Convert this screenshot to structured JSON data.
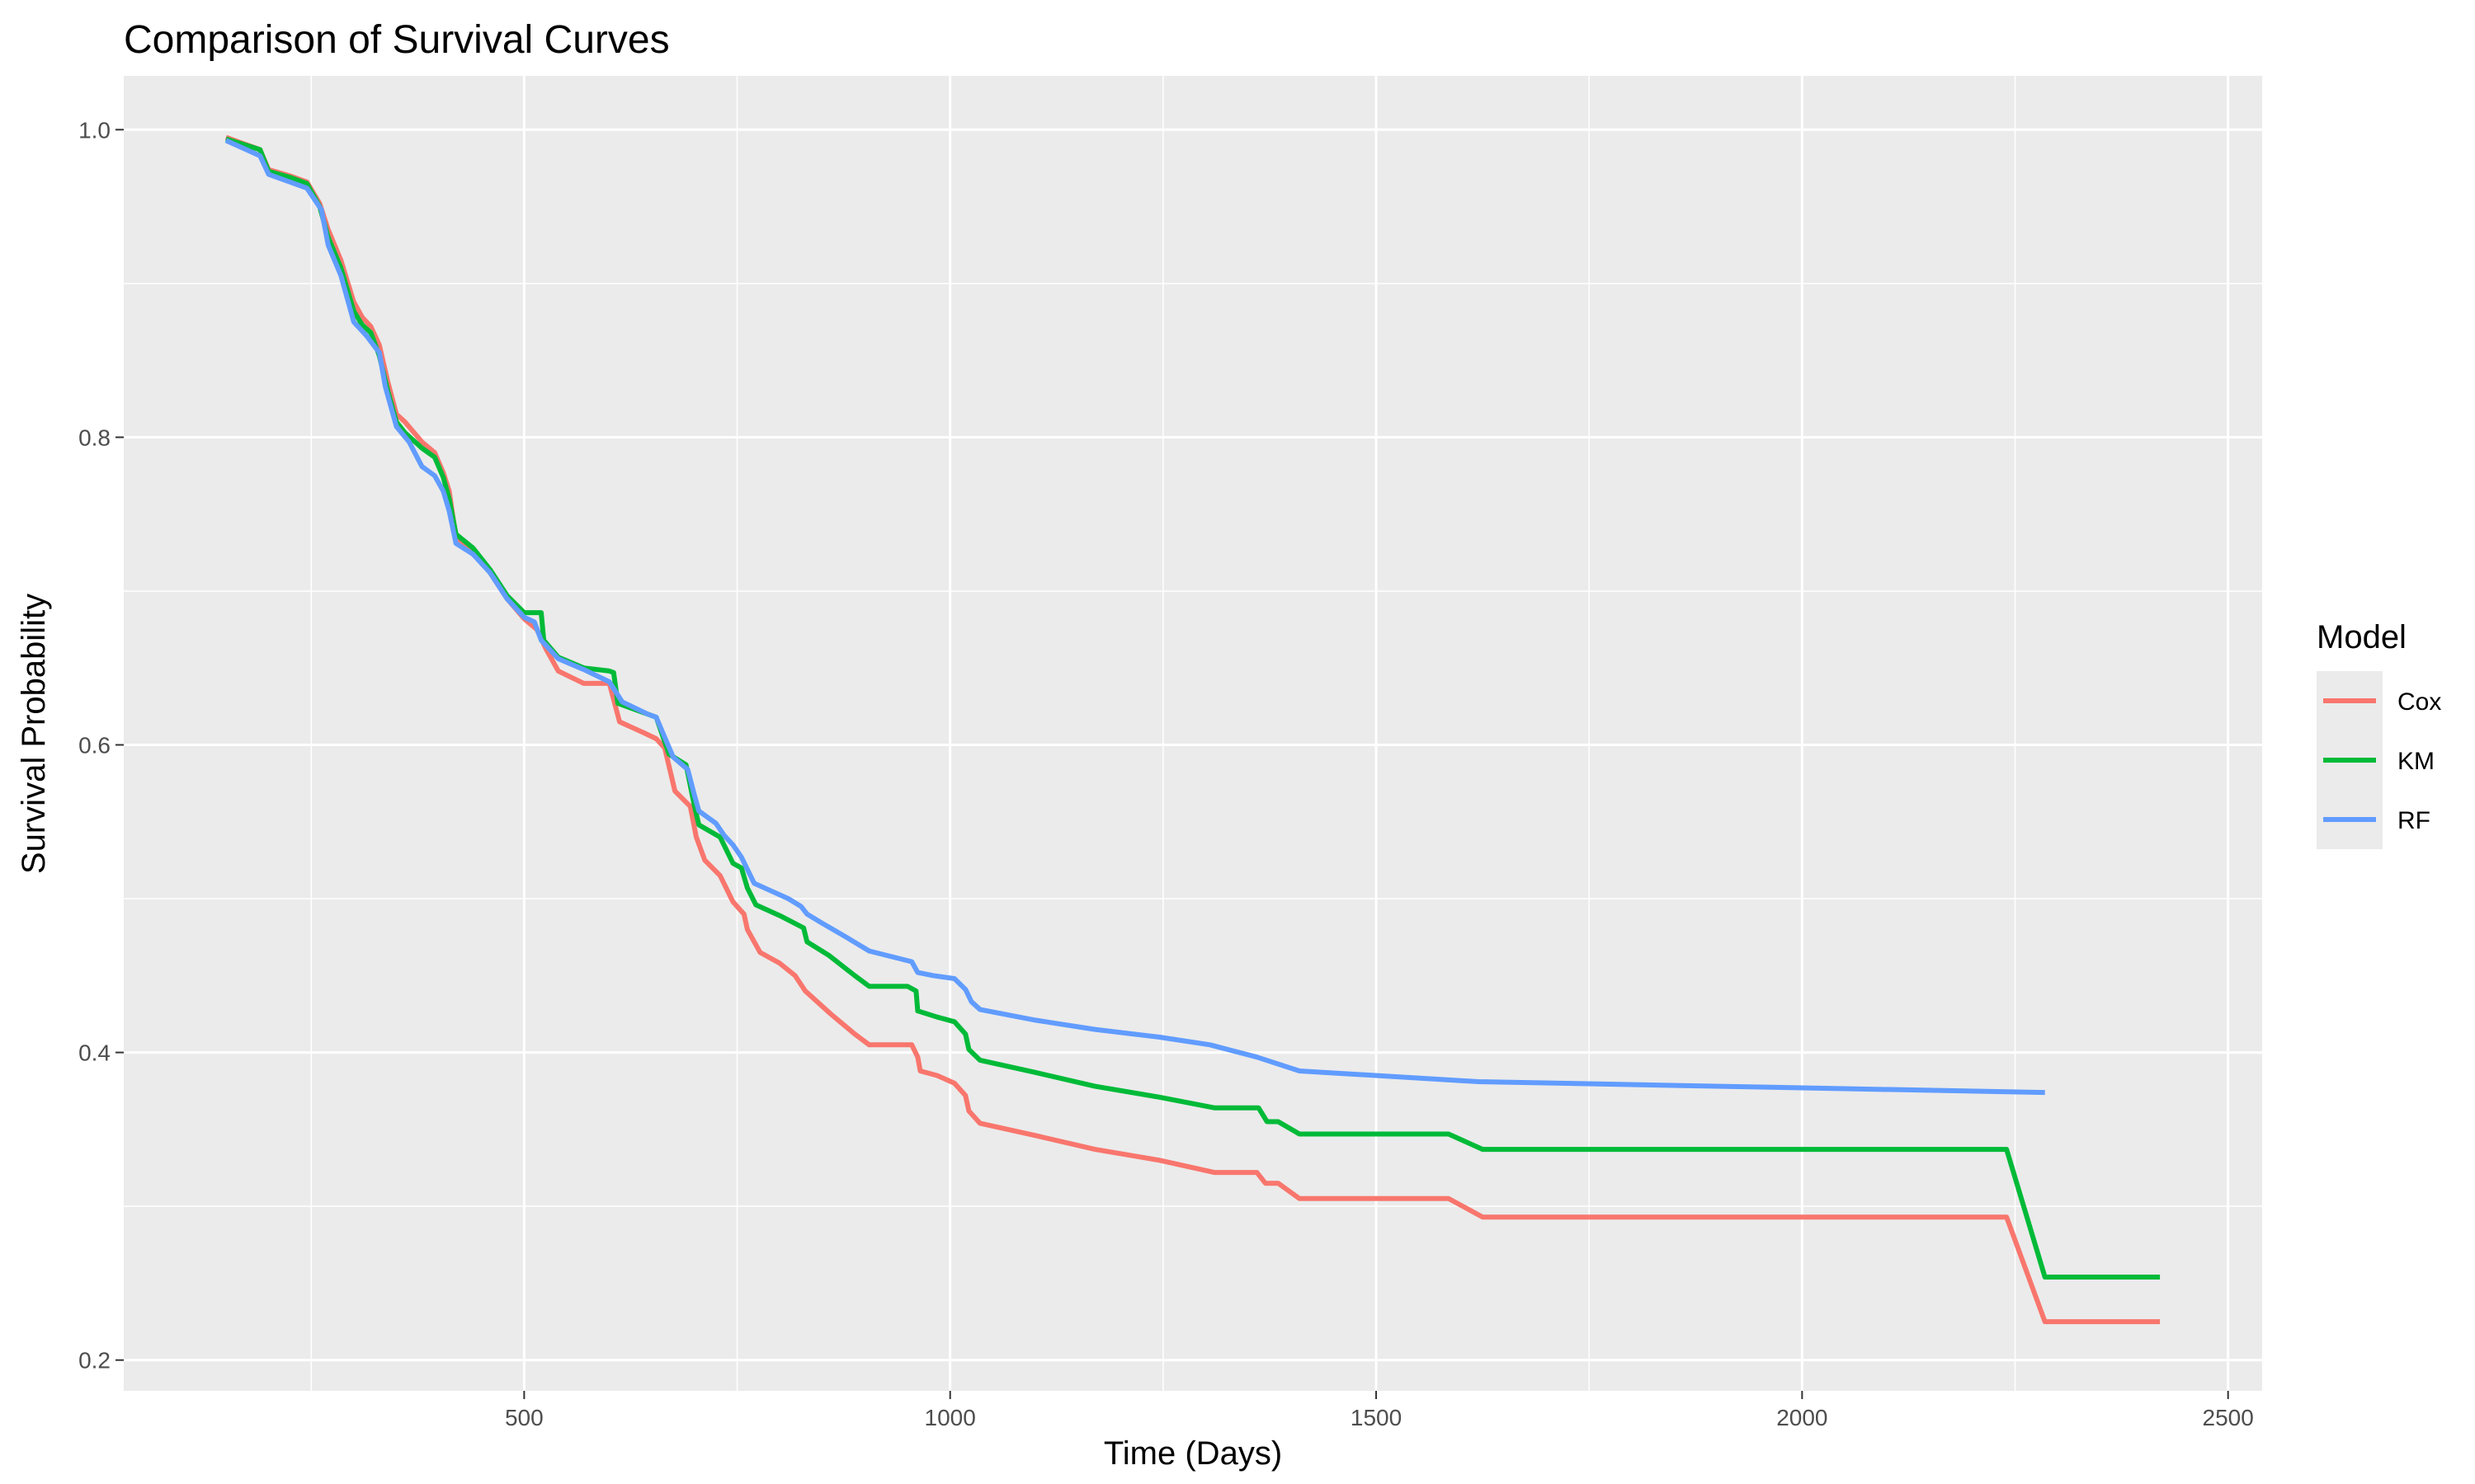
{
  "chart_data": {
    "type": "line",
    "title": "Comparison of Survival Curves",
    "xlabel": "Time (Days)",
    "ylabel": "Survival Probability",
    "xlim": [
      30,
      2540
    ],
    "ylim": [
      0.18,
      1.035
    ],
    "x_ticks": [
      500,
      1000,
      1500,
      2000,
      2500
    ],
    "x_minor_ticks": [
      250,
      750,
      1250,
      1750,
      2250
    ],
    "y_ticks": [
      0.2,
      0.4,
      0.6,
      0.8,
      1.0
    ],
    "y_tick_labels": [
      "0.2",
      "0.4",
      "0.6",
      "0.8",
      "1.0"
    ],
    "y_minor_ticks": [
      0.3,
      0.5,
      0.7,
      0.9
    ],
    "grid": true,
    "legend": {
      "title": "Model",
      "position": "right"
    },
    "background": "#ebebeb",
    "series": [
      {
        "name": "Cox",
        "color": "#f8766d",
        "points": [
          [
            150,
            0.995
          ],
          [
            190,
            0.987
          ],
          [
            200,
            0.974
          ],
          [
            225,
            0.97
          ],
          [
            245,
            0.966
          ],
          [
            260,
            0.952
          ],
          [
            270,
            0.935
          ],
          [
            285,
            0.915
          ],
          [
            300,
            0.888
          ],
          [
            310,
            0.878
          ],
          [
            320,
            0.872
          ],
          [
            330,
            0.86
          ],
          [
            340,
            0.836
          ],
          [
            350,
            0.815
          ],
          [
            360,
            0.81
          ],
          [
            380,
            0.797
          ],
          [
            395,
            0.79
          ],
          [
            405,
            0.777
          ],
          [
            412,
            0.765
          ],
          [
            420,
            0.735
          ],
          [
            440,
            0.727
          ],
          [
            460,
            0.712
          ],
          [
            480,
            0.695
          ],
          [
            500,
            0.682
          ],
          [
            515,
            0.675
          ],
          [
            525,
            0.663
          ],
          [
            540,
            0.648
          ],
          [
            570,
            0.64
          ],
          [
            600,
            0.64
          ],
          [
            612,
            0.615
          ],
          [
            640,
            0.608
          ],
          [
            655,
            0.604
          ],
          [
            665,
            0.598
          ],
          [
            677,
            0.57
          ],
          [
            695,
            0.56
          ],
          [
            702,
            0.54
          ],
          [
            712,
            0.525
          ],
          [
            730,
            0.515
          ],
          [
            745,
            0.498
          ],
          [
            758,
            0.49
          ],
          [
            762,
            0.48
          ],
          [
            777,
            0.465
          ],
          [
            800,
            0.458
          ],
          [
            818,
            0.45
          ],
          [
            830,
            0.44
          ],
          [
            860,
            0.425
          ],
          [
            888,
            0.412
          ],
          [
            905,
            0.405
          ],
          [
            955,
            0.405
          ],
          [
            962,
            0.397
          ],
          [
            965,
            0.388
          ],
          [
            985,
            0.385
          ],
          [
            1005,
            0.38
          ],
          [
            1018,
            0.372
          ],
          [
            1022,
            0.362
          ],
          [
            1035,
            0.354
          ],
          [
            1100,
            0.346
          ],
          [
            1170,
            0.337
          ],
          [
            1245,
            0.33
          ],
          [
            1310,
            0.322
          ],
          [
            1360,
            0.322
          ],
          [
            1370,
            0.315
          ],
          [
            1385,
            0.315
          ],
          [
            1410,
            0.305
          ],
          [
            1585,
            0.305
          ],
          [
            1625,
            0.293
          ],
          [
            2240,
            0.293
          ],
          [
            2285,
            0.225
          ],
          [
            2420,
            0.225
          ]
        ]
      },
      {
        "name": "KM",
        "color": "#00ba38",
        "points": [
          [
            150,
            0.994
          ],
          [
            190,
            0.987
          ],
          [
            200,
            0.973
          ],
          [
            225,
            0.969
          ],
          [
            245,
            0.965
          ],
          [
            260,
            0.95
          ],
          [
            270,
            0.93
          ],
          [
            285,
            0.91
          ],
          [
            300,
            0.882
          ],
          [
            310,
            0.873
          ],
          [
            320,
            0.868
          ],
          [
            330,
            0.853
          ],
          [
            340,
            0.83
          ],
          [
            350,
            0.81
          ],
          [
            360,
            0.803
          ],
          [
            380,
            0.793
          ],
          [
            395,
            0.787
          ],
          [
            405,
            0.774
          ],
          [
            412,
            0.76
          ],
          [
            420,
            0.737
          ],
          [
            440,
            0.728
          ],
          [
            460,
            0.714
          ],
          [
            480,
            0.697
          ],
          [
            500,
            0.686
          ],
          [
            520,
            0.686
          ],
          [
            523,
            0.668
          ],
          [
            540,
            0.657
          ],
          [
            570,
            0.65
          ],
          [
            600,
            0.648
          ],
          [
            605,
            0.647
          ],
          [
            610,
            0.627
          ],
          [
            640,
            0.621
          ],
          [
            655,
            0.618
          ],
          [
            670,
            0.594
          ],
          [
            690,
            0.587
          ],
          [
            700,
            0.56
          ],
          [
            705,
            0.548
          ],
          [
            730,
            0.54
          ],
          [
            745,
            0.523
          ],
          [
            755,
            0.52
          ],
          [
            762,
            0.507
          ],
          [
            772,
            0.496
          ],
          [
            800,
            0.489
          ],
          [
            828,
            0.481
          ],
          [
            832,
            0.472
          ],
          [
            858,
            0.463
          ],
          [
            888,
            0.45
          ],
          [
            905,
            0.443
          ],
          [
            950,
            0.443
          ],
          [
            960,
            0.44
          ],
          [
            962,
            0.427
          ],
          [
            985,
            0.423
          ],
          [
            1005,
            0.42
          ],
          [
            1018,
            0.412
          ],
          [
            1022,
            0.402
          ],
          [
            1035,
            0.395
          ],
          [
            1100,
            0.387
          ],
          [
            1170,
            0.378
          ],
          [
            1245,
            0.371
          ],
          [
            1310,
            0.364
          ],
          [
            1362,
            0.364
          ],
          [
            1372,
            0.355
          ],
          [
            1385,
            0.355
          ],
          [
            1410,
            0.347
          ],
          [
            1585,
            0.347
          ],
          [
            1625,
            0.337
          ],
          [
            2240,
            0.337
          ],
          [
            2285,
            0.254
          ],
          [
            2420,
            0.254
          ]
        ]
      },
      {
        "name": "RF",
        "color": "#619cff",
        "points": [
          [
            150,
            0.993
          ],
          [
            190,
            0.983
          ],
          [
            200,
            0.971
          ],
          [
            245,
            0.962
          ],
          [
            262,
            0.948
          ],
          [
            270,
            0.925
          ],
          [
            285,
            0.905
          ],
          [
            300,
            0.875
          ],
          [
            315,
            0.866
          ],
          [
            330,
            0.855
          ],
          [
            337,
            0.833
          ],
          [
            350,
            0.807
          ],
          [
            365,
            0.797
          ],
          [
            380,
            0.781
          ],
          [
            395,
            0.775
          ],
          [
            405,
            0.765
          ],
          [
            412,
            0.752
          ],
          [
            420,
            0.731
          ],
          [
            440,
            0.724
          ],
          [
            460,
            0.712
          ],
          [
            480,
            0.695
          ],
          [
            500,
            0.683
          ],
          [
            512,
            0.68
          ],
          [
            520,
            0.668
          ],
          [
            540,
            0.656
          ],
          [
            570,
            0.649
          ],
          [
            600,
            0.641
          ],
          [
            615,
            0.628
          ],
          [
            645,
            0.62
          ],
          [
            655,
            0.618
          ],
          [
            668,
            0.601
          ],
          [
            675,
            0.592
          ],
          [
            692,
            0.584
          ],
          [
            700,
            0.567
          ],
          [
            705,
            0.557
          ],
          [
            725,
            0.549
          ],
          [
            735,
            0.541
          ],
          [
            745,
            0.535
          ],
          [
            755,
            0.527
          ],
          [
            770,
            0.51
          ],
          [
            790,
            0.505
          ],
          [
            810,
            0.5
          ],
          [
            825,
            0.495
          ],
          [
            832,
            0.49
          ],
          [
            850,
            0.484
          ],
          [
            878,
            0.475
          ],
          [
            905,
            0.466
          ],
          [
            955,
            0.459
          ],
          [
            962,
            0.452
          ],
          [
            980,
            0.45
          ],
          [
            1005,
            0.448
          ],
          [
            1018,
            0.441
          ],
          [
            1025,
            0.433
          ],
          [
            1035,
            0.428
          ],
          [
            1100,
            0.421
          ],
          [
            1170,
            0.415
          ],
          [
            1245,
            0.41
          ],
          [
            1305,
            0.405
          ],
          [
            1360,
            0.397
          ],
          [
            1410,
            0.388
          ],
          [
            1620,
            0.381
          ],
          [
            2285,
            0.374
          ]
        ]
      }
    ]
  }
}
